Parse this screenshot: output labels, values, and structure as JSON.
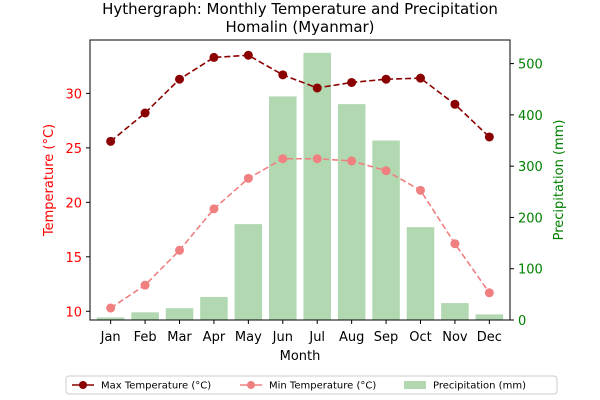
{
  "chart_data": {
    "type": "bar+line",
    "title": "Hythergraph: Monthly Temperature and Precipitation",
    "subtitle": "Homalin (Myanmar)",
    "xlabel": "Month",
    "ylabel_left": "Temperature (°C)",
    "ylabel_right": "Precipitation (mm)",
    "categories": [
      "Jan",
      "Feb",
      "Mar",
      "Apr",
      "May",
      "Jun",
      "Jul",
      "Aug",
      "Sep",
      "Oct",
      "Nov",
      "Dec"
    ],
    "ylim_left": [
      9.2,
      34.9
    ],
    "ylim_right": [
      0,
      546
    ],
    "yticks_left": [
      10,
      15,
      20,
      25,
      30
    ],
    "yticks_right": [
      0,
      100,
      200,
      300,
      400,
      500
    ],
    "grid": false,
    "legend_position": "bottom-center",
    "series": [
      {
        "name": "Max Temperature (°C)",
        "axis": "left",
        "kind": "line",
        "color": "#8b0000",
        "values": [
          25.6,
          28.2,
          31.3,
          33.3,
          33.5,
          31.7,
          30.5,
          31.0,
          31.3,
          31.4,
          29.0,
          26.0
        ]
      },
      {
        "name": "Min Temperature (°C)",
        "axis": "left",
        "kind": "line",
        "color": "#f08080",
        "values": [
          10.3,
          12.4,
          15.6,
          19.4,
          22.2,
          24.0,
          24.0,
          23.8,
          22.9,
          21.1,
          16.2,
          11.7
        ]
      },
      {
        "name": "Precipitation (mm)",
        "axis": "right",
        "kind": "bar",
        "color": "#b2d8b2",
        "values": [
          5,
          15,
          23,
          45,
          187,
          436,
          521,
          421,
          350,
          181,
          33,
          11
        ]
      }
    ]
  }
}
